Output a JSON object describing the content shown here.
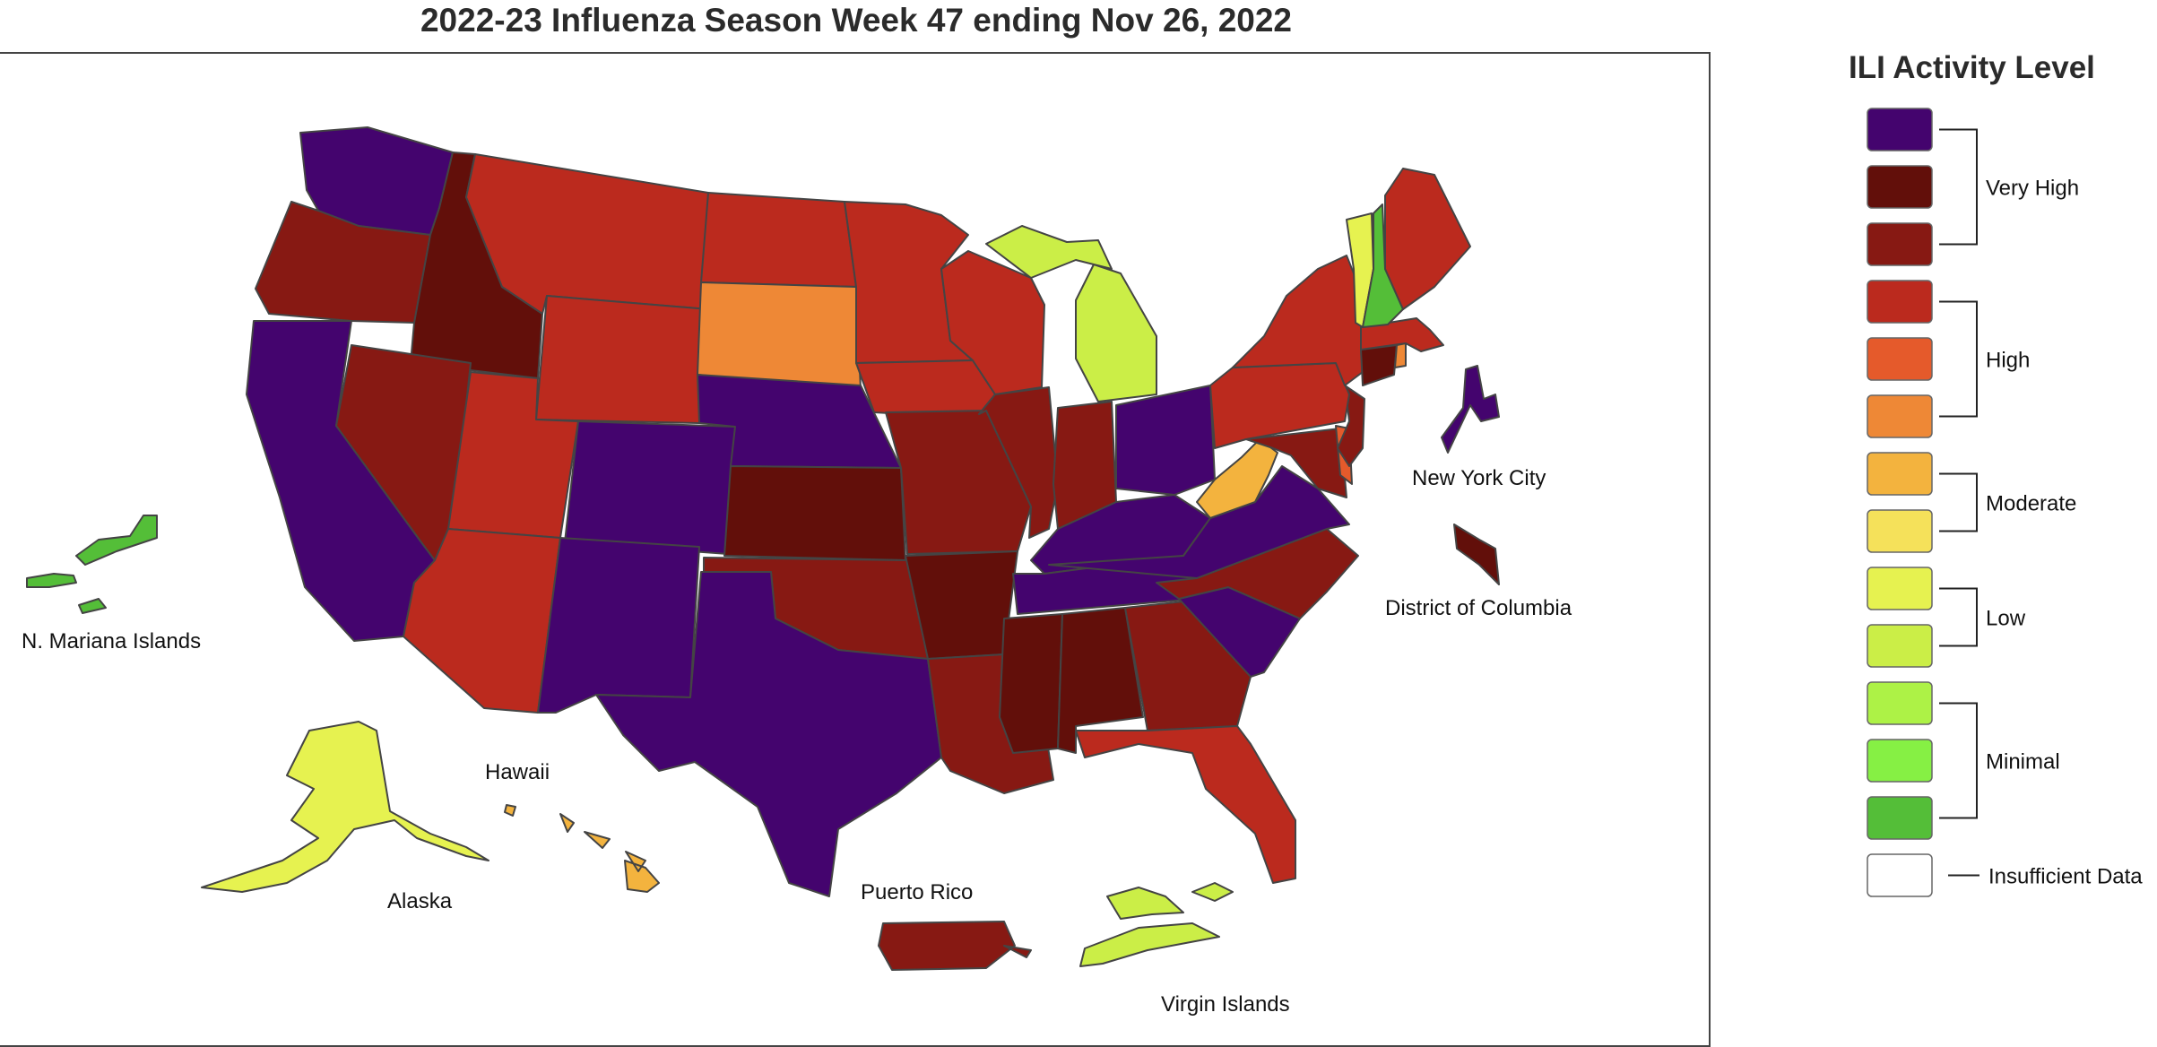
{
  "title": "2022-23 Influenza Season Week 47 ending Nov 26, 2022",
  "legend": {
    "title": "ILI Activity Level",
    "levels": [
      {
        "level": 13,
        "color": "#44046e"
      },
      {
        "level": 12,
        "color": "#620f0a"
      },
      {
        "level": 11,
        "color": "#871913"
      },
      {
        "level": 10,
        "color": "#bb2a1e"
      },
      {
        "level": 9,
        "color": "#e55a2b"
      },
      {
        "level": 8,
        "color": "#ee8836"
      },
      {
        "level": 7,
        "color": "#f3b33e"
      },
      {
        "level": 6,
        "color": "#f5e15a"
      },
      {
        "level": 5,
        "color": "#e6f250"
      },
      {
        "level": 4,
        "color": "#cbee47"
      },
      {
        "level": 3,
        "color": "#adf246"
      },
      {
        "level": 2,
        "color": "#86f044"
      },
      {
        "level": 1,
        "color": "#54be38"
      },
      {
        "level": 0,
        "color": "#ffffff"
      }
    ],
    "groups": [
      {
        "label": "Very High",
        "levels": [
          13,
          12,
          11
        ]
      },
      {
        "label": "High",
        "levels": [
          10,
          9,
          8
        ]
      },
      {
        "label": "Moderate",
        "levels": [
          7,
          6
        ]
      },
      {
        "label": "Low",
        "levels": [
          5,
          4
        ]
      },
      {
        "label": "Minimal",
        "levels": [
          3,
          2,
          1
        ]
      },
      {
        "label": "Insufficient Data",
        "levels": [
          0
        ]
      }
    ]
  },
  "labels": {
    "nyc": "New York City",
    "dc": "District of Columbia",
    "mariana": "N. Mariana Islands",
    "hawaii": "Hawaii",
    "alaska": "Alaska",
    "puerto_rico": "Puerto Rico",
    "virgin_islands": "Virgin Islands"
  },
  "regions": {
    "WA": 13,
    "OR": 11,
    "CA": 13,
    "ID": 12,
    "NV": 11,
    "MT": 10,
    "WY": 10,
    "UT": 10,
    "AZ": 10,
    "CO": 13,
    "NM": 13,
    "ND": 10,
    "SD": 8,
    "NE": 13,
    "KS": 12,
    "OK": 11,
    "TX": 13,
    "MN": 10,
    "IA": 10,
    "MO": 11,
    "AR": 12,
    "LA": 11,
    "WI": 10,
    "IL": 11,
    "MI": 4,
    "IN": 11,
    "OH": 13,
    "KY": 13,
    "TN": 13,
    "MS": 12,
    "AL": 12,
    "GA": 11,
    "FL": 10,
    "SC": 13,
    "NC": 11,
    "VA": 13,
    "WV": 7,
    "MD": 11,
    "DE": 9,
    "NJ": 11,
    "PA": 10,
    "NY": 10,
    "CT": 12,
    "RI": 8,
    "MA": 10,
    "VT": 5,
    "NH": 1,
    "ME": 10,
    "NYC": 13,
    "DC": 12,
    "AK": 5,
    "HI": 7,
    "PR": 11,
    "VI": 4,
    "MP": 1
  }
}
